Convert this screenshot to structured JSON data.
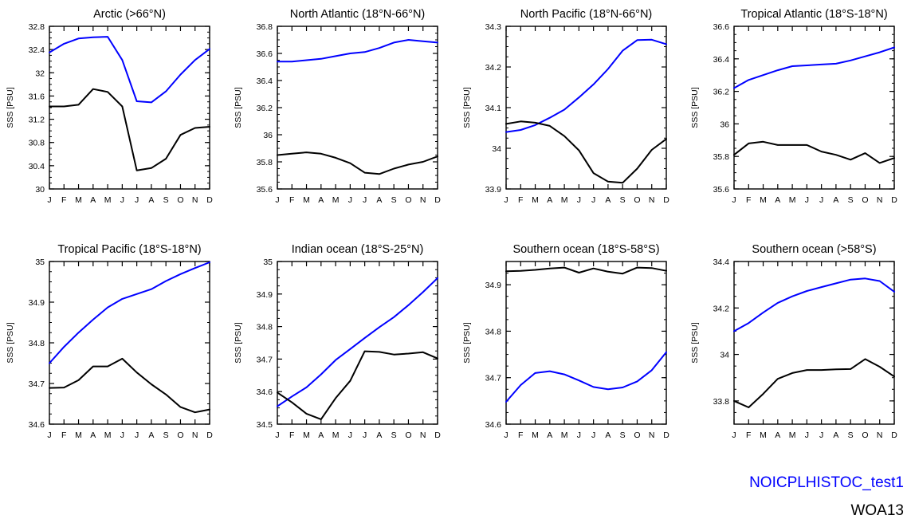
{
  "figure": {
    "ylabel": "SSS [PSU]",
    "months": [
      "J",
      "F",
      "M",
      "A",
      "M",
      "J",
      "J",
      "A",
      "S",
      "O",
      "N",
      "D"
    ]
  },
  "legend": {
    "model": {
      "name": "NOICPLHISTOC_test1",
      "color": "#0000ff"
    },
    "obs": {
      "name": "WOA13",
      "color": "#000000"
    }
  },
  "chart_data": [
    {
      "type": "line",
      "title": "Arctic (>66°N)",
      "ylim": [
        30,
        32.8
      ],
      "yticks": [
        30,
        30.4,
        30.8,
        31.2,
        31.6,
        32,
        32.4,
        32.8
      ],
      "ytick_labels": [
        "30",
        "30.4",
        "30.8",
        "31.2",
        "31.6",
        "32",
        "32.4",
        "32.8"
      ],
      "series": [
        {
          "name": "NOICPLHISTOC_test1",
          "color": "#0000ff",
          "values": [
            32.35,
            32.5,
            32.59,
            32.61,
            32.62,
            32.22,
            31.51,
            31.49,
            31.68,
            31.97,
            32.22,
            32.41
          ]
        },
        {
          "name": "WOA13",
          "color": "#000000",
          "values": [
            31.42,
            31.42,
            31.45,
            31.72,
            31.67,
            31.42,
            30.32,
            30.36,
            30.52,
            30.93,
            31.05,
            31.07
          ]
        }
      ]
    },
    {
      "type": "line",
      "title": "North Atlantic (18°N-66°N)",
      "ylim": [
        35.6,
        36.8
      ],
      "yticks": [
        35.6,
        35.8,
        36,
        36.2,
        36.4,
        36.6,
        36.8
      ],
      "ytick_labels": [
        "35.6",
        "35.8",
        "36",
        "36.2",
        "36.4",
        "36.6",
        "36.8"
      ],
      "series": [
        {
          "name": "NOICPLHISTOC_test1",
          "color": "#0000ff",
          "values": [
            36.54,
            36.54,
            36.55,
            36.56,
            36.58,
            36.6,
            36.61,
            36.64,
            36.68,
            36.7,
            36.69,
            36.68
          ]
        },
        {
          "name": "WOA13",
          "color": "#000000",
          "values": [
            35.85,
            35.86,
            35.87,
            35.86,
            35.83,
            35.79,
            35.72,
            35.71,
            35.75,
            35.78,
            35.8,
            35.84
          ]
        }
      ]
    },
    {
      "type": "line",
      "title": "North Pacific (18°N-66°N)",
      "ylim": [
        33.9,
        34.3
      ],
      "yticks": [
        33.9,
        34,
        34.1,
        34.2,
        34.3
      ],
      "ytick_labels": [
        "33.9",
        "34",
        "34.1",
        "34.2",
        "34.3"
      ],
      "series": [
        {
          "name": "NOICPLHISTOC_test1",
          "color": "#0000ff",
          "values": [
            34.04,
            34.045,
            34.057,
            34.075,
            34.095,
            34.125,
            34.157,
            34.195,
            34.24,
            34.266,
            34.267,
            34.256
          ]
        },
        {
          "name": "WOA13",
          "color": "#000000",
          "values": [
            34.06,
            34.066,
            34.063,
            34.055,
            34.03,
            33.995,
            33.939,
            33.918,
            33.915,
            33.95,
            33.996,
            34.023
          ]
        }
      ]
    },
    {
      "type": "line",
      "title": "Tropical Atlantic (18°S-18°N)",
      "ylim": [
        35.6,
        36.6
      ],
      "yticks": [
        35.6,
        35.8,
        36,
        36.2,
        36.4,
        36.6
      ],
      "ytick_labels": [
        "35.6",
        "35.8",
        "36",
        "36.2",
        "36.4",
        "36.6"
      ],
      "series": [
        {
          "name": "NOICPLHISTOC_test1",
          "color": "#0000ff",
          "values": [
            36.22,
            36.27,
            36.3,
            36.33,
            36.355,
            36.36,
            36.365,
            36.37,
            36.39,
            36.415,
            36.44,
            36.47
          ]
        },
        {
          "name": "WOA13",
          "color": "#000000",
          "values": [
            35.81,
            35.88,
            35.89,
            35.87,
            35.87,
            35.87,
            35.83,
            35.81,
            35.78,
            35.82,
            35.76,
            35.79
          ]
        }
      ]
    },
    {
      "type": "line",
      "title": "Tropical Pacific (18°S-18°N)",
      "ylim": [
        34.6,
        35
      ],
      "yticks": [
        34.6,
        34.7,
        34.8,
        34.9,
        35
      ],
      "ytick_labels": [
        "34.6",
        "34.7",
        "34.8",
        "34.9",
        "35"
      ],
      "series": [
        {
          "name": "NOICPLHISTOC_test1",
          "color": "#0000ff",
          "values": [
            34.75,
            34.79,
            34.825,
            34.857,
            34.887,
            34.908,
            34.92,
            34.932,
            34.952,
            34.969,
            34.984,
            34.998
          ]
        },
        {
          "name": "WOA13",
          "color": "#000000",
          "values": [
            34.689,
            34.69,
            34.708,
            34.742,
            34.742,
            34.761,
            34.727,
            34.698,
            34.673,
            34.642,
            34.629,
            34.636
          ]
        }
      ]
    },
    {
      "type": "line",
      "title": "Indian ocean (18°S-25°N)",
      "ylim": [
        34.5,
        35
      ],
      "yticks": [
        34.5,
        34.6,
        34.7,
        34.8,
        34.9,
        35
      ],
      "ytick_labels": [
        "34.5",
        "34.6",
        "34.7",
        "34.8",
        "34.9",
        "35"
      ],
      "series": [
        {
          "name": "NOICPLHISTOC_test1",
          "color": "#0000ff",
          "values": [
            34.555,
            34.585,
            34.613,
            34.653,
            34.697,
            34.731,
            34.765,
            34.798,
            34.829,
            34.866,
            34.906,
            34.949
          ]
        },
        {
          "name": "WOA13",
          "color": "#000000",
          "values": [
            34.597,
            34.567,
            34.532,
            34.515,
            34.58,
            34.633,
            34.724,
            34.722,
            34.714,
            34.717,
            34.721,
            34.702
          ]
        }
      ]
    },
    {
      "type": "line",
      "title": "Southern ocean (18°S-58°S)",
      "ylim": [
        34.6,
        34.95
      ],
      "yticks": [
        34.6,
        34.7,
        34.8,
        34.9
      ],
      "ytick_labels": [
        "34.6",
        "34.7",
        "34.8",
        "34.9"
      ],
      "series": [
        {
          "name": "NOICPLHISTOC_test1",
          "color": "#0000ff",
          "values": [
            34.648,
            34.684,
            34.71,
            34.714,
            34.707,
            34.694,
            34.68,
            34.675,
            34.679,
            34.692,
            34.716,
            34.755
          ]
        },
        {
          "name": "WOA13",
          "color": "#000000",
          "values": [
            34.929,
            34.93,
            34.932,
            34.935,
            34.937,
            34.926,
            34.935,
            34.928,
            34.924,
            34.937,
            34.936,
            34.93
          ]
        }
      ]
    },
    {
      "type": "line",
      "title": "Southern ocean (>58°S)",
      "ylim": [
        33.7,
        34.4
      ],
      "yticks": [
        33.8,
        34,
        34.2,
        34.4
      ],
      "ytick_labels": [
        "33.8",
        "34",
        "34.2",
        "34.4"
      ],
      "series": [
        {
          "name": "NOICPLHISTOC_test1",
          "color": "#0000ff",
          "values": [
            34.1,
            34.135,
            34.18,
            34.222,
            34.25,
            34.273,
            34.29,
            34.306,
            34.322,
            34.327,
            34.316,
            34.27
          ]
        },
        {
          "name": "WOA13",
          "color": "#000000",
          "values": [
            33.8,
            33.772,
            33.83,
            33.895,
            33.92,
            33.933,
            33.933,
            33.936,
            33.937,
            33.98,
            33.947,
            33.905
          ]
        }
      ]
    }
  ]
}
